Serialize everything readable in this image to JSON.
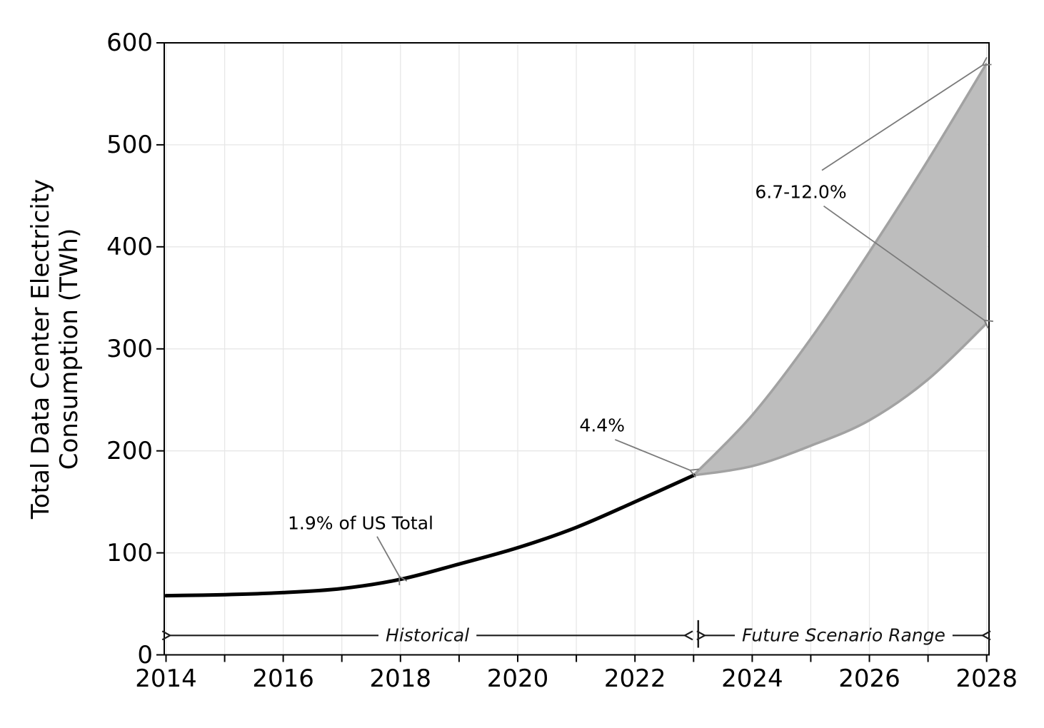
{
  "chart_data": {
    "type": "line",
    "title": "",
    "xlabel": "",
    "ylabel_line1": "Total Data Center Electricity",
    "ylabel_line2": "Consumption (TWh)",
    "xlim": [
      2014,
      2028
    ],
    "ylim": [
      0,
      600
    ],
    "yticks": [
      0,
      100,
      200,
      300,
      400,
      500,
      600
    ],
    "xticks_labeled": [
      2014,
      2016,
      2018,
      2020,
      2022,
      2024,
      2026,
      2028
    ],
    "xticks_minor": [
      2014,
      2015,
      2016,
      2017,
      2018,
      2019,
      2020,
      2021,
      2022,
      2023,
      2024,
      2025,
      2026,
      2027,
      2028
    ],
    "grid": true,
    "legend": "none",
    "series": [
      {
        "name": "Historical",
        "type": "line",
        "color": "#000000",
        "x": [
          2014,
          2015,
          2016,
          2017,
          2018,
          2019,
          2020,
          2021,
          2022,
          2023
        ],
        "y": [
          58,
          59,
          61,
          65,
          74,
          89,
          105,
          125,
          150,
          176
        ]
      },
      {
        "name": "Future Scenario Range",
        "type": "band",
        "fill_color": "#bdbdbd",
        "edge_color": "#a2a2a2",
        "x": [
          2023,
          2024,
          2025,
          2026,
          2027,
          2028
        ],
        "y_upper": [
          176,
          235,
          310,
          395,
          485,
          580
        ],
        "y_lower": [
          176,
          185,
          205,
          230,
          270,
          325
        ]
      }
    ],
    "annotations": {
      "share_2018": {
        "text": "1.9% of US Total",
        "text_at": [
          2017.32,
          129
        ],
        "arrow_from": [
          2017.6,
          116
        ],
        "arrow_to": [
          2017.98,
          77
        ],
        "arrow_color": "#7a7a7a"
      },
      "share_2023": {
        "text": "4.4%",
        "text_at": [
          2021.44,
          225
        ],
        "arrow_from": [
          2021.66,
          211
        ],
        "arrow_to": [
          2022.94,
          181
        ],
        "arrow_color": "#7a7a7a"
      },
      "share_2028": {
        "text": "6.7-12.0%",
        "text_at": [
          2024.83,
          454
        ],
        "arrows": [
          {
            "from": [
              2025.19,
              475
            ],
            "to": [
              2027.93,
              578
            ]
          },
          {
            "from": [
              2025.22,
              440
            ],
            "to": [
              2027.96,
              328
            ]
          }
        ],
        "arrow_color": "#7a7a7a"
      },
      "historical_span": {
        "text": "Historical",
        "x_from": 2014.07,
        "x_to": 2022.85,
        "y": 19,
        "color": "#1c1c1c"
      },
      "future_span": {
        "text": "Future Scenario Range",
        "x_from": 2023.19,
        "x_to": 2027.93,
        "y": 19,
        "color": "#1c1c1c"
      },
      "separator": {
        "x": 2023.08,
        "y_from": 7,
        "y_to": 34
      }
    },
    "style": {
      "grid_color": "#e7e7e7",
      "spine_color": "#000000",
      "background": "#ffffff"
    }
  }
}
